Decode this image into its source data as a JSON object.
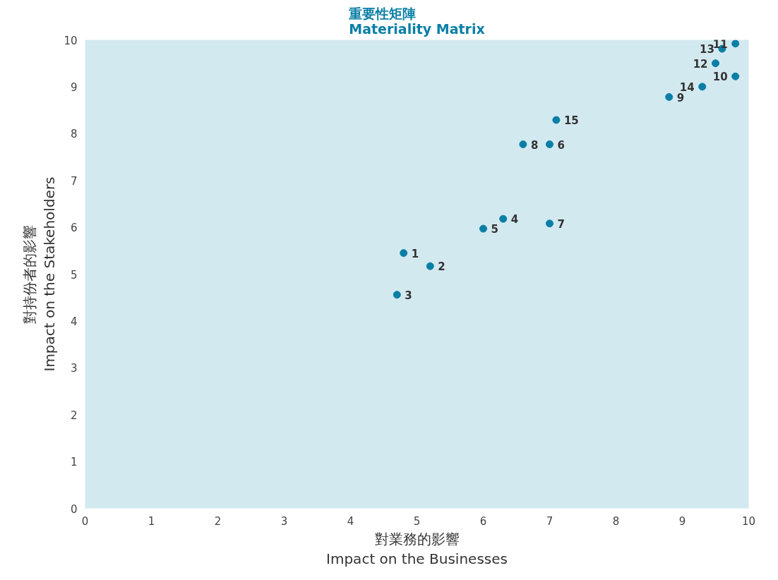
{
  "chart_data": {
    "type": "scatter",
    "title": "重要性矩陣\nMateriality Matrix",
    "xlabel": "對業務的影響\nImpact on the Businesses",
    "ylabel": "對持份者的影響\nImpact on the Stakeholders",
    "x": [
      4.8,
      5.2,
      4.7,
      6.3,
      6.0,
      7.0,
      7.0,
      6.6,
      8.8,
      9.8,
      9.8,
      9.5,
      9.6,
      9.3,
      7.1
    ],
    "series": [
      {
        "color": "#0a7fa6",
        "values": [
          5.45,
          5.17,
          4.56,
          6.18,
          5.97,
          7.77,
          6.08,
          7.77,
          8.78,
          9.22,
          9.92,
          9.5,
          9.81,
          9.0,
          8.29
        ]
      }
    ],
    "annotations": [
      {
        "text": "1",
        "x": 4.8,
        "y": 5.45
      },
      {
        "text": "2",
        "x": 5.2,
        "y": 5.17
      },
      {
        "text": "3",
        "x": 4.7,
        "y": 4.56
      },
      {
        "text": "4",
        "x": 6.3,
        "y": 6.18
      },
      {
        "text": "5",
        "x": 6.0,
        "y": 5.97
      },
      {
        "text": "6",
        "x": 7.0,
        "y": 7.77
      },
      {
        "text": "7",
        "x": 7.0,
        "y": 6.08
      },
      {
        "text": "8",
        "x": 6.6,
        "y": 7.77
      },
      {
        "text": "9",
        "x": 8.8,
        "y": 8.78
      },
      {
        "text": "10",
        "x": 9.8,
        "y": 9.22
      },
      {
        "text": "11",
        "x": 9.8,
        "y": 9.92
      },
      {
        "text": "12",
        "x": 9.5,
        "y": 9.5
      },
      {
        "text": "13",
        "x": 9.6,
        "y": 9.81
      },
      {
        "text": "14",
        "x": 9.3,
        "y": 9.0
      },
      {
        "text": "15",
        "x": 7.1,
        "y": 8.29
      }
    ],
    "xlim": [
      0,
      10
    ],
    "ylim": [
      0,
      10
    ],
    "xticks": [
      0,
      1,
      2,
      3,
      4,
      5,
      6,
      7,
      8,
      9,
      10
    ],
    "yticks": [
      0,
      1,
      2,
      3,
      4,
      5,
      6,
      7,
      8,
      9,
      10
    ],
    "grid": false,
    "marker": "circle"
  }
}
